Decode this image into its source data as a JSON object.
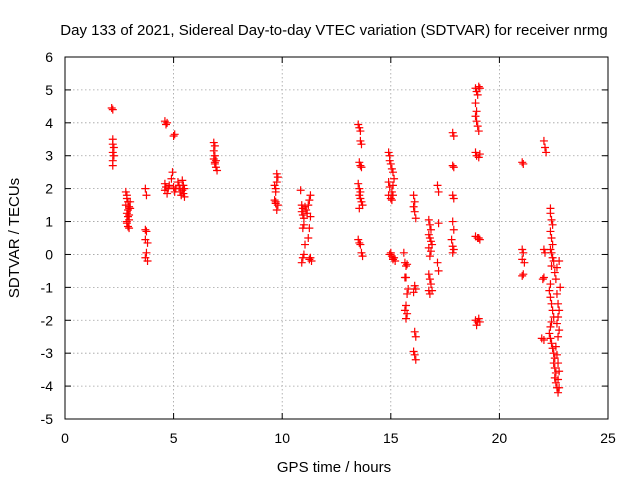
{
  "chart_data": {
    "type": "scatter",
    "title": "Day 133 of 2021, Sidereal Day-to-day VTEC variation (SDTVAR) for receiver nrmg",
    "xlabel": "GPS time / hours",
    "ylabel": "SDTVAR / TECUs",
    "xlim": [
      0,
      25
    ],
    "ylim": [
      -5,
      6
    ],
    "xticks": [
      "0",
      "5",
      "10",
      "15",
      "20",
      "25"
    ],
    "yticks": [
      "-5",
      "-4",
      "-3",
      "-2",
      "-1",
      "0",
      "1",
      "2",
      "3",
      "4",
      "5",
      "6"
    ],
    "grid": true,
    "marker": "plus",
    "color": "#ff0000",
    "series": [
      {
        "name": "SDTVAR",
        "points": [
          [
            2.15,
            4.45
          ],
          [
            2.2,
            4.4
          ],
          [
            2.2,
            3.5
          ],
          [
            2.2,
            3.35
          ],
          [
            2.25,
            3.25
          ],
          [
            2.2,
            3.1
          ],
          [
            2.25,
            3.0
          ],
          [
            2.2,
            2.85
          ],
          [
            2.2,
            2.7
          ],
          [
            2.8,
            1.9
          ],
          [
            2.85,
            1.8
          ],
          [
            2.85,
            1.7
          ],
          [
            2.9,
            1.6
          ],
          [
            2.8,
            1.5
          ],
          [
            2.95,
            1.45
          ],
          [
            2.9,
            1.35
          ],
          [
            2.85,
            1.25
          ],
          [
            2.9,
            1.15
          ],
          [
            2.95,
            1.05
          ],
          [
            2.85,
            0.95
          ],
          [
            2.9,
            0.85
          ],
          [
            2.95,
            0.8
          ],
          [
            3.0,
            1.6
          ],
          [
            3.0,
            1.4
          ],
          [
            2.95,
            1.2
          ],
          [
            2.85,
            1.0
          ],
          [
            3.7,
            2.0
          ],
          [
            3.75,
            1.8
          ],
          [
            3.7,
            0.75
          ],
          [
            3.75,
            0.7
          ],
          [
            3.7,
            0.45
          ],
          [
            3.8,
            0.35
          ],
          [
            3.75,
            0.05
          ],
          [
            3.7,
            -0.1
          ],
          [
            3.8,
            -0.2
          ],
          [
            4.6,
            4.05
          ],
          [
            4.65,
            3.95
          ],
          [
            4.7,
            4.0
          ],
          [
            4.6,
            2.15
          ],
          [
            4.65,
            2.05
          ],
          [
            4.6,
            1.95
          ],
          [
            4.7,
            1.85
          ],
          [
            4.75,
            2.0
          ],
          [
            4.8,
            2.1
          ],
          [
            4.9,
            2.3
          ],
          [
            4.95,
            2.5
          ],
          [
            5.0,
            3.6
          ],
          [
            5.05,
            3.65
          ],
          [
            5.0,
            2.05
          ],
          [
            5.05,
            1.9
          ],
          [
            5.1,
            2.0
          ],
          [
            5.2,
            2.2
          ],
          [
            5.25,
            2.1
          ],
          [
            5.3,
            2.0
          ],
          [
            5.3,
            1.9
          ],
          [
            5.35,
            1.8
          ],
          [
            5.4,
            2.25
          ],
          [
            5.45,
            2.1
          ],
          [
            5.4,
            1.95
          ],
          [
            5.45,
            1.85
          ],
          [
            5.5,
            2.0
          ],
          [
            5.5,
            1.75
          ],
          [
            6.85,
            3.4
          ],
          [
            6.9,
            3.3
          ],
          [
            6.85,
            3.15
          ],
          [
            6.9,
            3.0
          ],
          [
            6.85,
            2.9
          ],
          [
            6.95,
            2.85
          ],
          [
            6.9,
            2.75
          ],
          [
            6.95,
            2.65
          ],
          [
            7.0,
            2.55
          ],
          [
            6.9,
            2.8
          ],
          [
            9.65,
            2.1
          ],
          [
            9.7,
            2.0
          ],
          [
            9.7,
            1.9
          ],
          [
            9.75,
            2.2
          ],
          [
            9.8,
            2.35
          ],
          [
            9.75,
            2.45
          ],
          [
            9.65,
            1.65
          ],
          [
            9.7,
            1.55
          ],
          [
            9.8,
            1.5
          ],
          [
            9.75,
            1.35
          ],
          [
            9.7,
            1.6
          ],
          [
            10.85,
            1.95
          ],
          [
            10.9,
            1.5
          ],
          [
            10.95,
            1.4
          ],
          [
            10.9,
            1.3
          ],
          [
            10.95,
            1.2
          ],
          [
            11.0,
            1.1
          ],
          [
            11.0,
            0.9
          ],
          [
            10.95,
            0.8
          ],
          [
            11.05,
            1.45
          ],
          [
            11.05,
            0.3
          ],
          [
            11.0,
            0.0
          ],
          [
            10.95,
            -0.1
          ],
          [
            10.9,
            -0.25
          ],
          [
            11.1,
            1.35
          ],
          [
            11.15,
            1.25
          ],
          [
            11.2,
            1.5
          ],
          [
            11.25,
            1.65
          ],
          [
            11.3,
            1.8
          ],
          [
            11.3,
            1.15
          ],
          [
            11.25,
            0.8
          ],
          [
            11.2,
            0.5
          ],
          [
            11.3,
            -0.1
          ],
          [
            11.35,
            -0.2
          ],
          [
            11.25,
            -0.15
          ],
          [
            13.5,
            3.95
          ],
          [
            13.55,
            3.85
          ],
          [
            13.6,
            3.75
          ],
          [
            13.6,
            3.45
          ],
          [
            13.65,
            3.35
          ],
          [
            13.55,
            2.8
          ],
          [
            13.6,
            2.7
          ],
          [
            13.65,
            2.65
          ],
          [
            13.5,
            2.15
          ],
          [
            13.55,
            2.0
          ],
          [
            13.6,
            1.9
          ],
          [
            13.55,
            1.8
          ],
          [
            13.6,
            1.7
          ],
          [
            13.65,
            1.6
          ],
          [
            13.7,
            1.5
          ],
          [
            13.55,
            1.4
          ],
          [
            13.5,
            0.45
          ],
          [
            13.55,
            0.35
          ],
          [
            13.6,
            0.3
          ],
          [
            13.65,
            0.05
          ],
          [
            13.7,
            -0.05
          ],
          [
            14.9,
            3.1
          ],
          [
            14.95,
            3.0
          ],
          [
            14.95,
            2.85
          ],
          [
            15.0,
            2.75
          ],
          [
            15.05,
            2.6
          ],
          [
            14.9,
            2.2
          ],
          [
            14.95,
            2.05
          ],
          [
            14.9,
            1.8
          ],
          [
            15.0,
            1.7
          ],
          [
            15.05,
            1.65
          ],
          [
            15.1,
            1.8
          ],
          [
            15.05,
            1.9
          ],
          [
            15.1,
            2.5
          ],
          [
            15.15,
            2.3
          ],
          [
            15.1,
            2.1
          ],
          [
            15.0,
            0.05
          ],
          [
            15.05,
            -0.05
          ],
          [
            15.1,
            -0.15
          ],
          [
            14.95,
            0.0
          ],
          [
            15.15,
            -0.1
          ],
          [
            15.2,
            -0.2
          ],
          [
            15.6,
            0.05
          ],
          [
            15.65,
            -0.25
          ],
          [
            15.7,
            -0.35
          ],
          [
            15.75,
            -0.3
          ],
          [
            15.7,
            -0.7
          ],
          [
            15.8,
            -1.05
          ],
          [
            15.75,
            -1.2
          ],
          [
            15.7,
            -1.55
          ],
          [
            15.65,
            -1.7
          ],
          [
            15.75,
            -1.8
          ],
          [
            15.7,
            -1.95
          ],
          [
            15.65,
            -0.7
          ],
          [
            16.05,
            1.8
          ],
          [
            16.1,
            1.6
          ],
          [
            16.05,
            1.45
          ],
          [
            16.1,
            1.3
          ],
          [
            16.15,
            1.1
          ],
          [
            16.1,
            -0.95
          ],
          [
            16.05,
            -1.15
          ],
          [
            16.15,
            -1.05
          ],
          [
            16.1,
            -2.35
          ],
          [
            16.15,
            -2.5
          ],
          [
            16.05,
            -2.95
          ],
          [
            16.1,
            -3.05
          ],
          [
            16.15,
            -3.2
          ],
          [
            16.75,
            1.05
          ],
          [
            16.8,
            0.9
          ],
          [
            16.85,
            0.75
          ],
          [
            16.75,
            0.6
          ],
          [
            16.8,
            0.5
          ],
          [
            16.85,
            0.4
          ],
          [
            16.9,
            0.3
          ],
          [
            16.75,
            0.2
          ],
          [
            16.85,
            0.1
          ],
          [
            16.8,
            -0.05
          ],
          [
            16.75,
            -0.6
          ],
          [
            16.8,
            -0.75
          ],
          [
            16.85,
            -0.9
          ],
          [
            16.75,
            -1.1
          ],
          [
            16.8,
            -1.2
          ],
          [
            16.9,
            -1.1
          ],
          [
            17.15,
            2.1
          ],
          [
            17.2,
            1.9
          ],
          [
            17.2,
            0.95
          ],
          [
            17.15,
            -0.25
          ],
          [
            17.2,
            -0.5
          ],
          [
            17.85,
            3.7
          ],
          [
            17.9,
            3.6
          ],
          [
            17.85,
            2.7
          ],
          [
            17.9,
            2.65
          ],
          [
            17.85,
            1.8
          ],
          [
            17.9,
            1.7
          ],
          [
            17.85,
            1.0
          ],
          [
            17.9,
            0.75
          ],
          [
            17.8,
            0.45
          ],
          [
            17.85,
            0.25
          ],
          [
            17.9,
            0.15
          ],
          [
            17.85,
            0.05
          ],
          [
            18.9,
            5.05
          ],
          [
            18.95,
            4.95
          ],
          [
            19.0,
            4.85
          ],
          [
            19.05,
            5.1
          ],
          [
            19.1,
            5.05
          ],
          [
            18.9,
            4.6
          ],
          [
            18.95,
            4.35
          ],
          [
            18.9,
            4.2
          ],
          [
            18.95,
            4.05
          ],
          [
            19.0,
            3.9
          ],
          [
            19.05,
            3.75
          ],
          [
            18.9,
            3.1
          ],
          [
            18.95,
            3.0
          ],
          [
            19.05,
            2.95
          ],
          [
            19.1,
            3.05
          ],
          [
            18.9,
            0.55
          ],
          [
            19.0,
            0.5
          ],
          [
            19.05,
            0.5
          ],
          [
            19.1,
            0.45
          ],
          [
            18.9,
            -2.0
          ],
          [
            18.95,
            -2.15
          ],
          [
            19.0,
            -2.05
          ],
          [
            19.05,
            -1.95
          ],
          [
            19.1,
            -2.05
          ],
          [
            21.05,
            2.8
          ],
          [
            21.1,
            2.75
          ],
          [
            21.05,
            0.15
          ],
          [
            21.1,
            0.05
          ],
          [
            21.05,
            -0.15
          ],
          [
            21.15,
            -0.25
          ],
          [
            21.1,
            -0.6
          ],
          [
            21.05,
            -0.65
          ],
          [
            22.05,
            3.45
          ],
          [
            22.1,
            3.25
          ],
          [
            22.15,
            3.1
          ],
          [
            22.05,
            0.15
          ],
          [
            22.1,
            0.05
          ],
          [
            22.0,
            -0.75
          ],
          [
            22.05,
            -0.7
          ],
          [
            21.95,
            -2.55
          ],
          [
            22.05,
            -2.6
          ],
          [
            22.35,
            1.4
          ],
          [
            22.35,
            1.25
          ],
          [
            22.4,
            1.05
          ],
          [
            22.45,
            0.9
          ],
          [
            22.35,
            0.7
          ],
          [
            22.4,
            0.5
          ],
          [
            22.45,
            0.3
          ],
          [
            22.35,
            0.15
          ],
          [
            22.4,
            0.05
          ],
          [
            22.45,
            -0.1
          ],
          [
            22.5,
            -0.2
          ],
          [
            22.4,
            -0.35
          ],
          [
            22.35,
            -0.9
          ],
          [
            22.3,
            -1.1
          ],
          [
            22.35,
            -1.3
          ],
          [
            22.4,
            -1.5
          ],
          [
            22.45,
            -1.7
          ],
          [
            22.5,
            -1.9
          ],
          [
            22.4,
            -2.05
          ],
          [
            22.35,
            -2.2
          ],
          [
            22.3,
            -2.4
          ],
          [
            22.35,
            -2.55
          ],
          [
            22.4,
            -2.7
          ],
          [
            22.45,
            -2.85
          ],
          [
            22.5,
            -3.0
          ],
          [
            22.55,
            -3.15
          ],
          [
            22.5,
            -3.3
          ],
          [
            22.55,
            -3.45
          ],
          [
            22.6,
            -3.6
          ],
          [
            22.55,
            -3.75
          ],
          [
            22.6,
            -3.9
          ],
          [
            22.65,
            -4.05
          ],
          [
            22.7,
            -4.2
          ],
          [
            22.55,
            -0.55
          ],
          [
            22.6,
            -0.75
          ],
          [
            22.65,
            -1.2
          ],
          [
            22.7,
            -1.5
          ],
          [
            22.75,
            -1.7
          ],
          [
            22.7,
            -1.9
          ],
          [
            22.65,
            -2.1
          ],
          [
            22.75,
            -2.3
          ],
          [
            22.7,
            -2.5
          ],
          [
            22.6,
            -2.8
          ],
          [
            22.65,
            -3.05
          ],
          [
            22.7,
            -3.3
          ],
          [
            22.75,
            -3.55
          ],
          [
            22.7,
            -3.8
          ],
          [
            22.75,
            -4.05
          ],
          [
            22.8,
            -1.0
          ],
          [
            22.75,
            -0.2
          ],
          [
            22.65,
            -0.4
          ]
        ]
      }
    ]
  }
}
